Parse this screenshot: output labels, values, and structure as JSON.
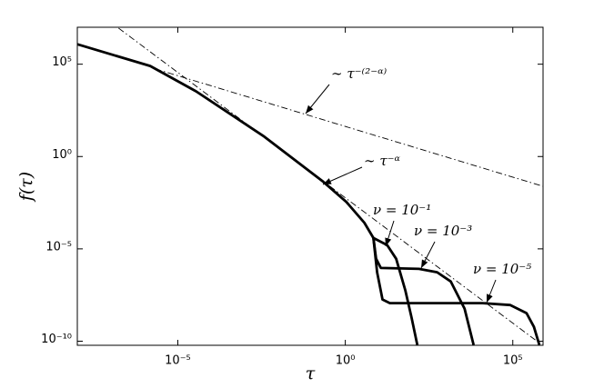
{
  "chart_data": {
    "type": "line",
    "xlabel": "τ",
    "ylabel": "f(τ)",
    "xscale": "log",
    "yscale": "log",
    "xlim": [
      1e-08,
      800000.0
    ],
    "ylim": [
      6e-11,
      10000000.0
    ],
    "xticks": [
      {
        "value": 1e-05,
        "label": "10⁻⁵"
      },
      {
        "value": 1,
        "label": "10⁰"
      },
      {
        "value": 100000.0,
        "label": "10⁵"
      }
    ],
    "yticks": [
      {
        "value": 1e-10,
        "label": "10⁻¹⁰"
      },
      {
        "value": 1e-05,
        "label": "10⁻⁵"
      },
      {
        "value": 1,
        "label": "10⁰"
      },
      {
        "value": 100000.0,
        "label": "10⁵"
      }
    ],
    "series": [
      {
        "color": "#000000",
        "style": "solid",
        "x": [
          1e-08,
          1.5e-06,
          3.5e-05,
          0.0038,
          0.22,
          1.07,
          3.7,
          6.9
        ],
        "values": [
          1200000.0,
          80000.0,
          3400.0,
          12,
          0.043,
          0.0035,
          0.00026,
          3.9e-05
        ]
      },
      {
        "color": "#000000",
        "style": "solid",
        "x": [
          6.9,
          17.8,
          33,
          62,
          95,
          141
        ],
        "values": [
          3.9e-05,
          1.6e-05,
          2.9e-06,
          5.6e-08,
          1.9e-09,
          6.3e-11
        ]
      },
      {
        "color": "#000000",
        "style": "solid",
        "x": [
          6.9,
          8.3,
          11.5,
          158,
          550,
          1410,
          3630,
          6760
        ],
        "values": [
          3.9e-05,
          2.9e-06,
          9.3e-07,
          8.3e-07,
          5.4e-07,
          1.7e-07,
          5.8e-09,
          6.3e-11
        ]
      },
      {
        "color": "#000000",
        "style": "solid",
        "x": [
          6.9,
          8.9,
          12.9,
          21.4,
          12600,
          83000,
          257000,
          427000,
          620000
        ],
        "values": [
          3.9e-05,
          5.4e-07,
          1.8e-08,
          1.15e-08,
          1.15e-08,
          9.1e-09,
          3.3e-09,
          6e-10,
          6.3e-11
        ]
      },
      {
        "color": "#000000",
        "style": "dashdot",
        "x": [
          1.7e-07,
          620000
        ],
        "values": [
          9000000.0,
          8e-11
        ]
      },
      {
        "color": "#000000",
        "style": "dashdot",
        "x": [
          2.1e-06,
          830000
        ],
        "values": [
          56000.0,
          0.024
        ]
      }
    ],
    "annotations": [
      "∼ τ⁻⁽²⁻ᵅ⁾",
      "∼ τ⁻ᵅ",
      "ν = 10⁻¹",
      "ν = 10⁻³",
      "ν = 10⁻⁵"
    ]
  }
}
